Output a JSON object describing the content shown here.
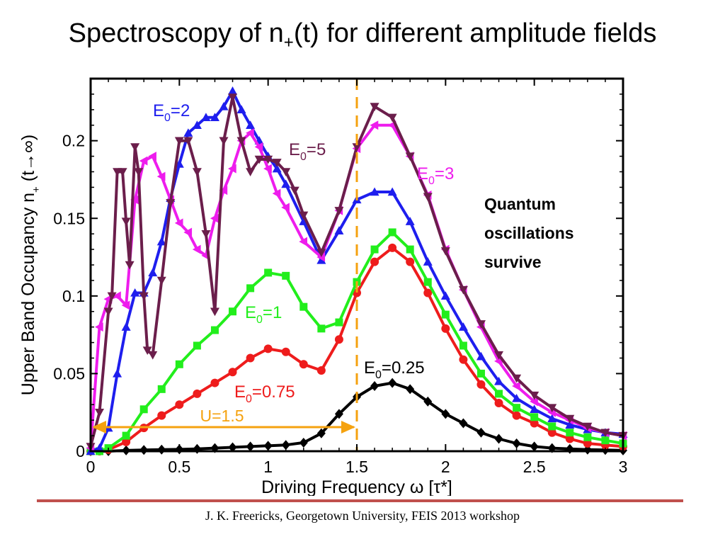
{
  "slide": {
    "title_prefix": "Spectroscopy of n",
    "title_sub": "+",
    "title_suffix": "(t) for different amplitude fields",
    "side_note": "Quantum\noscillations\nsurvive",
    "footer": "J. K. Freericks, Georgetown University, FEIS 2013 workshop",
    "footer_rule_color": "#c0504d"
  },
  "chart_data": {
    "type": "line",
    "xlabel": "Driving Frequency  ω [τ*]",
    "ylabel": "Upper Band Occupancy n+ (t→∞)",
    "xlim": [
      0,
      3
    ],
    "ylim": [
      0,
      0.24
    ],
    "xticks": [
      0,
      0.5,
      1,
      1.5,
      2,
      2.5,
      3
    ],
    "xtick_labels": [
      "0",
      "0.5",
      "1",
      "1.5",
      "2",
      "2.5",
      "3"
    ],
    "yticks": [
      0,
      0.05,
      0.1,
      0.15,
      0.2
    ],
    "ytick_labels": [
      "0",
      "0.05",
      "0.1",
      "0.15",
      "0.2"
    ],
    "grid": false,
    "series": [
      {
        "name": "E0=0.25",
        "label_main": "E",
        "label_sub": "0",
        "label_tail": "=0.25",
        "color": "#000000",
        "marker": "diamond",
        "x": [
          0,
          0.1,
          0.2,
          0.3,
          0.4,
          0.5,
          0.6,
          0.7,
          0.8,
          0.9,
          1,
          1.1,
          1.2,
          1.3,
          1.4,
          1.5,
          1.6,
          1.7,
          1.8,
          1.9,
          2,
          2.1,
          2.2,
          2.3,
          2.4,
          2.5,
          2.6,
          2.7,
          2.8,
          2.9,
          3
        ],
        "y": [
          0,
          0,
          0.0005,
          0.0008,
          0.001,
          0.0012,
          0.0015,
          0.002,
          0.0025,
          0.003,
          0.0035,
          0.004,
          0.0055,
          0.0115,
          0.024,
          0.035,
          0.042,
          0.044,
          0.04,
          0.032,
          0.024,
          0.018,
          0.012,
          0.008,
          0.005,
          0.003,
          0.002,
          0.0015,
          0.001,
          0.0008,
          0.0005
        ]
      },
      {
        "name": "E0=0.75",
        "label_main": "E",
        "label_sub": "0",
        "label_tail": "=0.75",
        "color": "#ee1c1c",
        "marker": "circle",
        "x": [
          0,
          0.05,
          0.1,
          0.2,
          0.3,
          0.4,
          0.5,
          0.6,
          0.7,
          0.8,
          0.9,
          1,
          1.1,
          1.2,
          1.3,
          1.4,
          1.5,
          1.6,
          1.7,
          1.8,
          1.9,
          2,
          2.1,
          2.2,
          2.3,
          2.4,
          2.5,
          2.6,
          2.7,
          2.8,
          2.9,
          3
        ],
        "y": [
          0,
          0,
          0.001,
          0.006,
          0.015,
          0.023,
          0.03,
          0.037,
          0.044,
          0.051,
          0.06,
          0.066,
          0.064,
          0.056,
          0.052,
          0.072,
          0.102,
          0.122,
          0.131,
          0.122,
          0.102,
          0.079,
          0.059,
          0.043,
          0.031,
          0.023,
          0.018,
          0.012,
          0.008,
          0.005,
          0.004,
          0.003
        ]
      },
      {
        "name": "E0=1",
        "label_main": "E",
        "label_sub": "0",
        "label_tail": "=1",
        "color": "#22ee1c",
        "marker": "square",
        "x": [
          0,
          0.05,
          0.1,
          0.2,
          0.3,
          0.4,
          0.5,
          0.6,
          0.7,
          0.8,
          0.9,
          1,
          1.1,
          1.2,
          1.3,
          1.4,
          1.5,
          1.6,
          1.7,
          1.8,
          1.9,
          2,
          2.1,
          2.2,
          2.3,
          2.4,
          2.5,
          2.6,
          2.7,
          2.8,
          2.9,
          3
        ],
        "y": [
          0,
          0,
          0.002,
          0.01,
          0.027,
          0.04,
          0.056,
          0.068,
          0.078,
          0.09,
          0.105,
          0.115,
          0.113,
          0.093,
          0.079,
          0.083,
          0.109,
          0.13,
          0.141,
          0.13,
          0.109,
          0.088,
          0.068,
          0.05,
          0.037,
          0.028,
          0.022,
          0.016,
          0.012,
          0.009,
          0.007,
          0.005
        ]
      },
      {
        "name": "E0=2",
        "label_main": "E",
        "label_sub": "0",
        "label_tail": "=2",
        "color": "#1e1eee",
        "marker": "triangle-up",
        "x": [
          0,
          0.05,
          0.1,
          0.15,
          0.2,
          0.25,
          0.3,
          0.35,
          0.4,
          0.45,
          0.5,
          0.55,
          0.6,
          0.65,
          0.7,
          0.75,
          0.8,
          0.85,
          0.9,
          0.95,
          1,
          1.05,
          1.1,
          1.2,
          1.3,
          1.4,
          1.5,
          1.6,
          1.7,
          1.8,
          1.9,
          2,
          2.1,
          2.2,
          2.3,
          2.4,
          2.5,
          2.6,
          2.7,
          2.8,
          2.9,
          3
        ],
        "y": [
          0,
          0.002,
          0.015,
          0.05,
          0.08,
          0.102,
          0.102,
          0.115,
          0.135,
          0.163,
          0.185,
          0.205,
          0.21,
          0.215,
          0.215,
          0.222,
          0.232,
          0.22,
          0.21,
          0.2,
          0.19,
          0.182,
          0.172,
          0.148,
          0.123,
          0.142,
          0.162,
          0.167,
          0.167,
          0.148,
          0.122,
          0.1,
          0.08,
          0.061,
          0.045,
          0.034,
          0.027,
          0.021,
          0.017,
          0.014,
          0.012,
          0.011
        ]
      },
      {
        "name": "E0=3",
        "label_main": "E",
        "label_sub": "0",
        "label_tail": "=3",
        "color": "#ee1ced",
        "marker": "triangle-left",
        "x": [
          0,
          0.05,
          0.1,
          0.15,
          0.2,
          0.25,
          0.3,
          0.35,
          0.4,
          0.45,
          0.5,
          0.55,
          0.6,
          0.65,
          0.7,
          0.75,
          0.8,
          0.85,
          0.9,
          0.95,
          1,
          1.05,
          1.1,
          1.2,
          1.3,
          1.4,
          1.5,
          1.6,
          1.7,
          1.8,
          1.9,
          2,
          2.1,
          2.2,
          2.3,
          2.4,
          2.5,
          2.6,
          2.7,
          2.8,
          2.9,
          3
        ],
        "y": [
          0.002,
          0.08,
          0.098,
          0.1,
          0.094,
          0.162,
          0.187,
          0.19,
          0.177,
          0.162,
          0.147,
          0.141,
          0.13,
          0.126,
          0.15,
          0.168,
          0.182,
          0.2,
          0.205,
          0.196,
          0.182,
          0.166,
          0.157,
          0.135,
          0.125,
          0.155,
          0.195,
          0.21,
          0.21,
          0.19,
          0.165,
          0.13,
          0.104,
          0.08,
          0.058,
          0.042,
          0.032,
          0.025,
          0.02,
          0.015,
          0.012,
          0.01
        ]
      },
      {
        "name": "E0=5",
        "label_main": "E",
        "label_sub": "0",
        "label_tail": "=5",
        "color": "#6b1e4b",
        "marker": "triangle-down",
        "x": [
          0,
          0.05,
          0.1,
          0.12,
          0.15,
          0.18,
          0.2,
          0.22,
          0.25,
          0.27,
          0.3,
          0.32,
          0.35,
          0.4,
          0.45,
          0.5,
          0.55,
          0.6,
          0.65,
          0.7,
          0.75,
          0.8,
          0.85,
          0.9,
          0.95,
          1,
          1.05,
          1.1,
          1.15,
          1.2,
          1.3,
          1.4,
          1.5,
          1.6,
          1.7,
          1.8,
          1.9,
          2,
          2.1,
          2.2,
          2.3,
          2.4,
          2.5,
          2.6,
          2.7,
          2.8,
          2.9,
          3
        ],
        "y": [
          0.003,
          0.025,
          0.09,
          0.1,
          0.18,
          0.18,
          0.148,
          0.12,
          0.196,
          0.18,
          0.1,
          0.065,
          0.062,
          0.11,
          0.16,
          0.2,
          0.2,
          0.18,
          0.14,
          0.09,
          0.2,
          0.228,
          0.2,
          0.18,
          0.188,
          0.188,
          0.186,
          0.18,
          0.168,
          0.152,
          0.128,
          0.155,
          0.196,
          0.222,
          0.215,
          0.19,
          0.164,
          0.129,
          0.104,
          0.082,
          0.062,
          0.047,
          0.036,
          0.028,
          0.021,
          0.016,
          0.012,
          0.01
        ]
      }
    ],
    "annotations": {
      "u_line": {
        "x": 1.5,
        "label": "U=1.5",
        "color": "#f5a20f"
      }
    }
  }
}
